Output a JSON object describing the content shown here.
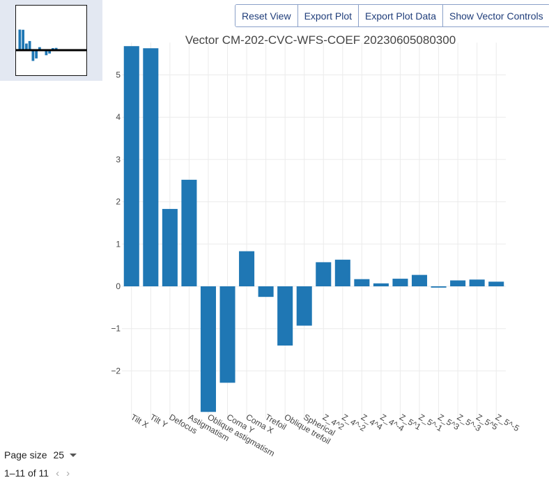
{
  "toolbar": {
    "reset_label": "Reset View",
    "export_plot_label": "Export Plot",
    "export_data_label": "Export Plot Data",
    "vector_controls_label": "Show Vector Controls"
  },
  "pager": {
    "page_size_label": "Page size",
    "page_size_value": "25",
    "range_text": "1–11 of 11",
    "prev_icon": "‹",
    "next_icon": "›"
  },
  "colors": {
    "bar": "#1f77b4",
    "grid": "#ebebeb",
    "thumb_panel": "#e3e8f2"
  },
  "chart_data": {
    "type": "bar",
    "title": "Vector CM-202-CVC-WFS-COEF 20230605080300",
    "categories": [
      "Tilt X",
      "Tilt Y",
      "Defocus",
      "Astigmatism",
      "Oblique astigmatism",
      "Coma Y",
      "Coma X",
      "Trefoil",
      "Oblique trefoil",
      "Spherical",
      "Z_4^2",
      "Z_4^-2",
      "Z_4^4",
      "Z_4^-4",
      "Z_5^1",
      "Z_5^-1",
      "Z_5^3",
      "Z_5^-3",
      "Z_5^5",
      "Z_5^-5"
    ],
    "values": [
      5.68,
      5.63,
      1.83,
      2.52,
      -2.97,
      -2.28,
      0.83,
      -0.25,
      -1.4,
      -0.93,
      0.57,
      0.63,
      0.17,
      0.07,
      0.18,
      0.27,
      -0.03,
      0.14,
      0.16,
      0.11
    ],
    "ylim": [
      -3.0,
      5.6
    ],
    "yticks": [
      -2,
      -1,
      0,
      1,
      2,
      3,
      4,
      5
    ],
    "ytick_labels": [
      "−2",
      "−1",
      "0",
      "1",
      "2",
      "3",
      "4",
      "5"
    ],
    "grid": true,
    "xlabel": "",
    "ylabel": ""
  }
}
